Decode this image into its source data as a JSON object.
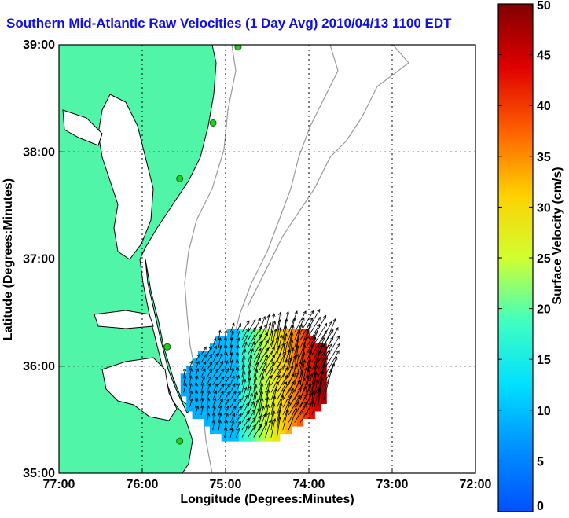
{
  "figure": {
    "title": "Southern Mid-Atlantic Raw Velocities (1 Day Avg) 2010/04/13 1100 EDT"
  },
  "chart_data": {
    "type": "heatmap",
    "title": "Southern Mid-Atlantic Raw Velocities (1 Day Avg) 2010/04/13 1100 EDT",
    "xlabel": "Longitude (Degrees:Minutes)",
    "ylabel": "Latitude (Degrees:Minutes)",
    "x_ticks": [
      "77:00",
      "76:00",
      "75:00",
      "74:00",
      "73:00",
      "72:00"
    ],
    "y_ticks": [
      "39:00",
      "38:00",
      "37:00",
      "36:00",
      "35:00"
    ],
    "xlim": [
      -77,
      -72
    ],
    "ylim": [
      35,
      39
    ],
    "grid": true,
    "colorbar": {
      "label": "Surface Velocity (cm/s)",
      "range": [
        0,
        50
      ],
      "ticks": [
        0,
        5,
        10,
        15,
        20,
        25,
        30,
        35,
        40,
        45,
        50
      ]
    },
    "field": {
      "lon_range": [
        -75.75,
        -73.8
      ],
      "lat_range": [
        35.3,
        36.35
      ],
      "low_speed_west_cms": 8,
      "high_speed_east_cms": 50,
      "typical_direction": "north-northeast"
    }
  },
  "colors": {
    "land": "#50f5a8",
    "water": "#ffffff",
    "title": "#1010e0",
    "bathymetry": "#9a9a9a",
    "station": "#22cc22"
  }
}
